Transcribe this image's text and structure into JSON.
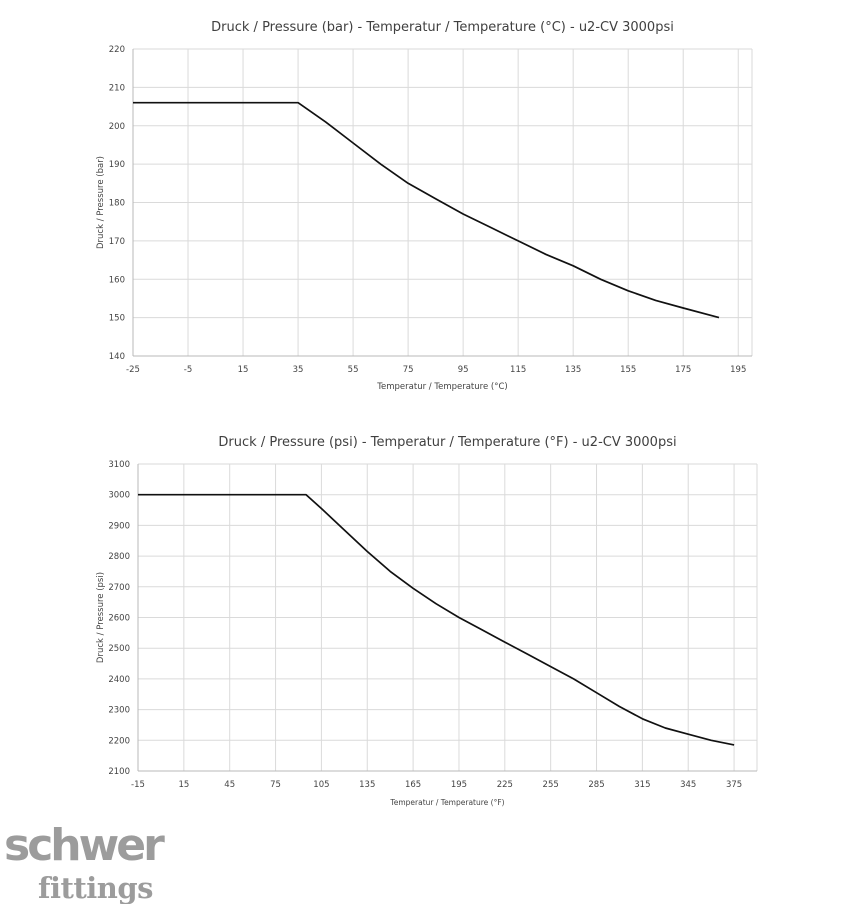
{
  "chart_data": [
    {
      "type": "line",
      "title": "Druck / Pressure (bar) - Temperatur / Temperature (°C) - u2-CV 3000psi",
      "xlabel": "Temperatur / Temperature (°C)",
      "ylabel": "Druck / Pressure (bar)",
      "xlim": [
        -25,
        200
      ],
      "ylim": [
        140,
        220
      ],
      "xticks": [
        -25,
        -5,
        15,
        35,
        55,
        75,
        95,
        115,
        135,
        155,
        175,
        195
      ],
      "yticks": [
        140,
        150,
        160,
        170,
        180,
        190,
        200,
        210,
        220
      ],
      "grid": true,
      "series": [
        {
          "color": "#111111",
          "x": [
            -25,
            35,
            45,
            55,
            65,
            75,
            85,
            95,
            105,
            115,
            125,
            135,
            145,
            155,
            165,
            175,
            188
          ],
          "y": [
            206,
            206,
            201,
            195.5,
            190,
            185,
            181,
            177,
            173.5,
            170,
            166.5,
            163.5,
            160,
            157,
            154.5,
            152.5,
            150
          ]
        }
      ]
    },
    {
      "type": "line",
      "title": "Druck / Pressure (psi) - Temperatur / Temperature (°F) - u2-CV 3000psi",
      "xlabel": "Temperatur / Temperature (°F)",
      "ylabel": "Druck / Pressure (psi)",
      "xlim": [
        -15,
        390
      ],
      "ylim": [
        2100,
        3100
      ],
      "xticks": [
        -15,
        15,
        45,
        75,
        105,
        135,
        165,
        195,
        225,
        255,
        285,
        315,
        345,
        375
      ],
      "yticks": [
        2100,
        2200,
        2300,
        2400,
        2500,
        2600,
        2700,
        2800,
        2900,
        3000,
        3100
      ],
      "grid": true,
      "series": [
        {
          "color": "#111111",
          "x": [
            -15,
            95,
            105,
            120,
            135,
            150,
            165,
            180,
            195,
            210,
            225,
            240,
            255,
            270,
            285,
            300,
            315,
            330,
            345,
            360,
            375
          ],
          "y": [
            3000,
            3000,
            2955,
            2885,
            2815,
            2750,
            2695,
            2645,
            2600,
            2560,
            2520,
            2480,
            2440,
            2400,
            2355,
            2310,
            2270,
            2240,
            2220,
            2200,
            2185
          ]
        }
      ]
    }
  ],
  "logo": {
    "line1": "schwer",
    "line2": "fittings",
    "color": "#9c9c9c"
  }
}
